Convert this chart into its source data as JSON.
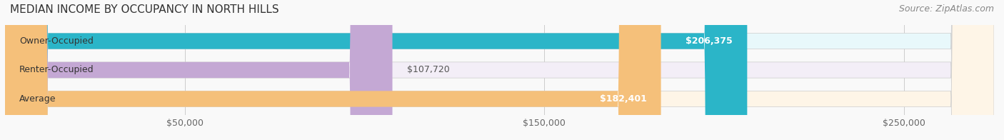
{
  "title": "MEDIAN INCOME BY OCCUPANCY IN NORTH HILLS",
  "source": "Source: ZipAtlas.com",
  "categories": [
    "Owner-Occupied",
    "Renter-Occupied",
    "Average"
  ],
  "values": [
    206375,
    107720,
    182401
  ],
  "labels": [
    "$206,375",
    "$107,720",
    "$182,401"
  ],
  "bar_colors": [
    "#2bb5c8",
    "#c4a8d4",
    "#f5c07a"
  ],
  "bar_bg_colors": [
    "#e8f8fb",
    "#f3eef7",
    "#fef5e7"
  ],
  "xmax": 275000,
  "xticks": [
    0,
    50000,
    150000,
    250000
  ],
  "xtick_labels": [
    "$50,000",
    "$150,000",
    "$250,000"
  ],
  "title_fontsize": 11,
  "source_fontsize": 9,
  "label_fontsize": 9,
  "category_fontsize": 9,
  "tick_fontsize": 9,
  "bar_height": 0.55,
  "figsize": [
    14.06,
    1.96
  ],
  "dpi": 100
}
